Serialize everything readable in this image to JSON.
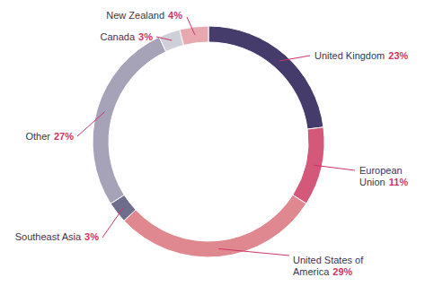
{
  "chart_data": {
    "type": "donut",
    "categories": [
      "United Kingdom",
      "European Union",
      "United States of America",
      "Southeast Asia",
      "Other",
      "Canada",
      "New Zealand"
    ],
    "values": [
      23,
      11,
      29,
      3,
      27,
      3,
      4
    ],
    "value_labels": [
      "23%",
      "11%",
      "29%",
      "3%",
      "27%",
      "3%",
      "4%"
    ],
    "colors": [
      "#463c6b",
      "#d4587a",
      "#e0888f",
      "#6e6d8c",
      "#a6a2b8",
      "#cfcfda",
      "#e8a8b0"
    ],
    "data_labels": true
  }
}
